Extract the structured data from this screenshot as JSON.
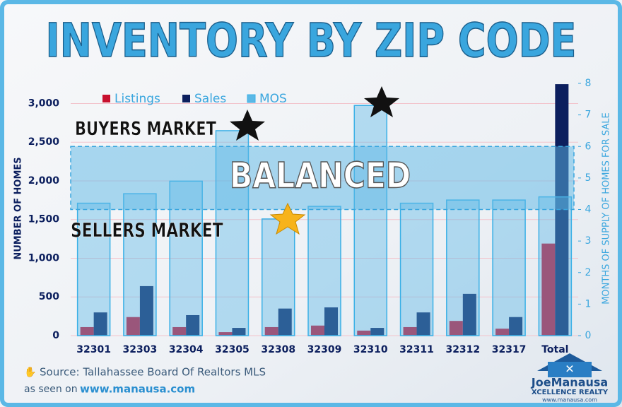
{
  "chart_data": {
    "type": "bar",
    "title": "INVENTORY BY ZIP CODE",
    "ylabel": "NUMBER OF HOMES",
    "y2label": "MONTHS OF SUPPLY OF HOMES FOR SALE",
    "categories": [
      "32301",
      "32303",
      "32304",
      "32305",
      "32308",
      "32309",
      "32310",
      "32311",
      "32312",
      "32317",
      "Total"
    ],
    "series": [
      {
        "name": "Listings",
        "color": "#c8102e",
        "values": [
          110,
          240,
          110,
          45,
          110,
          130,
          65,
          110,
          190,
          90,
          1190
        ]
      },
      {
        "name": "Sales",
        "color": "#0c1f5e",
        "values": [
          300,
          640,
          265,
          100,
          350,
          365,
          100,
          300,
          540,
          240,
          3250
        ]
      },
      {
        "name": "MOS",
        "color": "#5bb8e6",
        "axis": "y2",
        "values": [
          4.2,
          4.5,
          4.9,
          6.5,
          3.7,
          4.1,
          7.3,
          4.2,
          4.3,
          4.3,
          4.4
        ]
      }
    ],
    "ylim": [
      0,
      3260
    ],
    "yticks": [
      0,
      500,
      {
        "value": 1000,
        "label": "1,000"
      },
      {
        "value": 1500,
        "label": "1,500"
      },
      {
        "value": 2000,
        "label": "2,000"
      },
      {
        "value": 2500,
        "label": "2,500"
      },
      {
        "value": 3000,
        "label": "3,000"
      }
    ],
    "y2lim": [
      0,
      8
    ],
    "y2ticks": [
      0,
      1,
      2,
      3,
      4,
      5,
      6,
      7,
      8
    ],
    "grid": true,
    "legend": "top",
    "annotations": {
      "buyers": "BUYERS MARKET",
      "balanced": "BALANCED",
      "sellers": "SELLERS MARKET",
      "balanced_range": [
        4,
        6
      ]
    }
  },
  "source": {
    "text": "Source: Tallahassee Board Of Realtors MLS",
    "prefix": "as seen on",
    "url": "www.manausa.com"
  },
  "logo": {
    "name": "JoeManausa",
    "tagline": "XCELLENCE REALTY",
    "url": "www.manausa.com"
  }
}
